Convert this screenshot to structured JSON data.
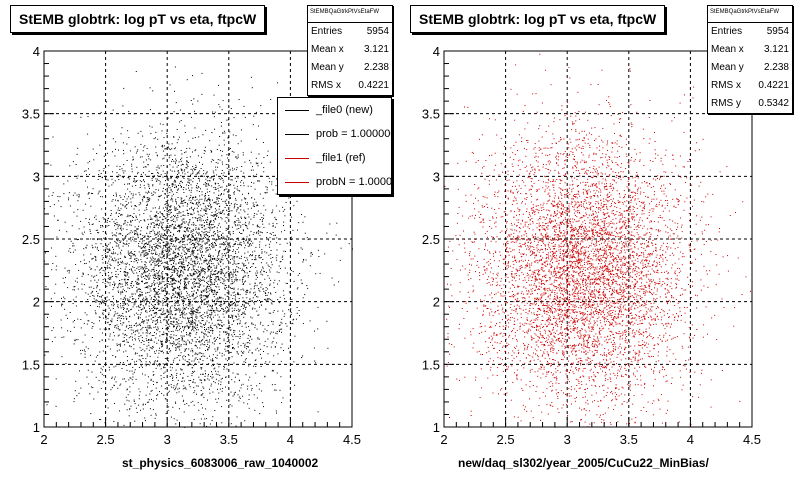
{
  "chart_data": [
    {
      "type": "scatter",
      "title": "StEMB globtrk: log pT vs eta, ftpcW",
      "xlabel": "st_physics_6083006_raw_1040002",
      "ylabel": "",
      "xlim": [
        2,
        4.5
      ],
      "ylim": [
        1,
        4
      ],
      "xticks": [
        "2",
        "2.5",
        "3",
        "3.5",
        "4",
        "4.5"
      ],
      "yticks": [
        "1",
        "1.5",
        "2",
        "2.5",
        "3",
        "3.5",
        "4"
      ],
      "grid": true,
      "marker_color": "#000000",
      "points": {
        "count": 5954,
        "mean_x": 3.121,
        "mean_y": 2.238,
        "rms_x": 0.4221,
        "rms_y": 0.5342
      },
      "stats": {
        "name": "StEMBQaGtrkPtVsEtaFW",
        "rows": [
          {
            "label": "Entries",
            "value": "5954"
          },
          {
            "label": "Mean x",
            "value": "3.121"
          },
          {
            "label": "Mean y",
            "value": "2.238"
          },
          {
            "label": "RMS x",
            "value": "0.4221"
          }
        ]
      },
      "legend": {
        "placement": "top-right",
        "entries": [
          {
            "label": "_file0 (new)",
            "color": "#000000"
          },
          {
            "label": "prob = 1.000000",
            "color": "#000000"
          },
          {
            "label": "_file1 (ref)",
            "color": "#cc0000"
          },
          {
            "label": "probN = 1.000000",
            "color": "#cc0000"
          }
        ]
      }
    },
    {
      "type": "scatter",
      "title": "StEMB globtrk: log pT vs eta, ftpcW",
      "xlabel": "new/daq_sl302/year_2005/CuCu22_MinBias/",
      "ylabel": "",
      "xlim": [
        2,
        4.5
      ],
      "ylim": [
        1,
        4
      ],
      "xticks": [
        "2",
        "2.5",
        "3",
        "3.5",
        "4",
        "4.5"
      ],
      "yticks": [
        "1",
        "1.5",
        "2",
        "2.5",
        "3",
        "3.5",
        "4"
      ],
      "grid": true,
      "marker_color": "#cc0000",
      "points": {
        "count": 5954,
        "mean_x": 3.121,
        "mean_y": 2.238,
        "rms_x": 0.4221,
        "rms_y": 0.5342
      },
      "stats": {
        "name": "StEMBQaGtrkPtVsEtaFW",
        "rows": [
          {
            "label": "Entries",
            "value": "5954"
          },
          {
            "label": "Mean x",
            "value": "3.121"
          },
          {
            "label": "Mean y",
            "value": "2.238"
          },
          {
            "label": "RMS x",
            "value": "0.4221"
          },
          {
            "label": "RMS y",
            "value": "0.5342"
          }
        ]
      }
    }
  ]
}
